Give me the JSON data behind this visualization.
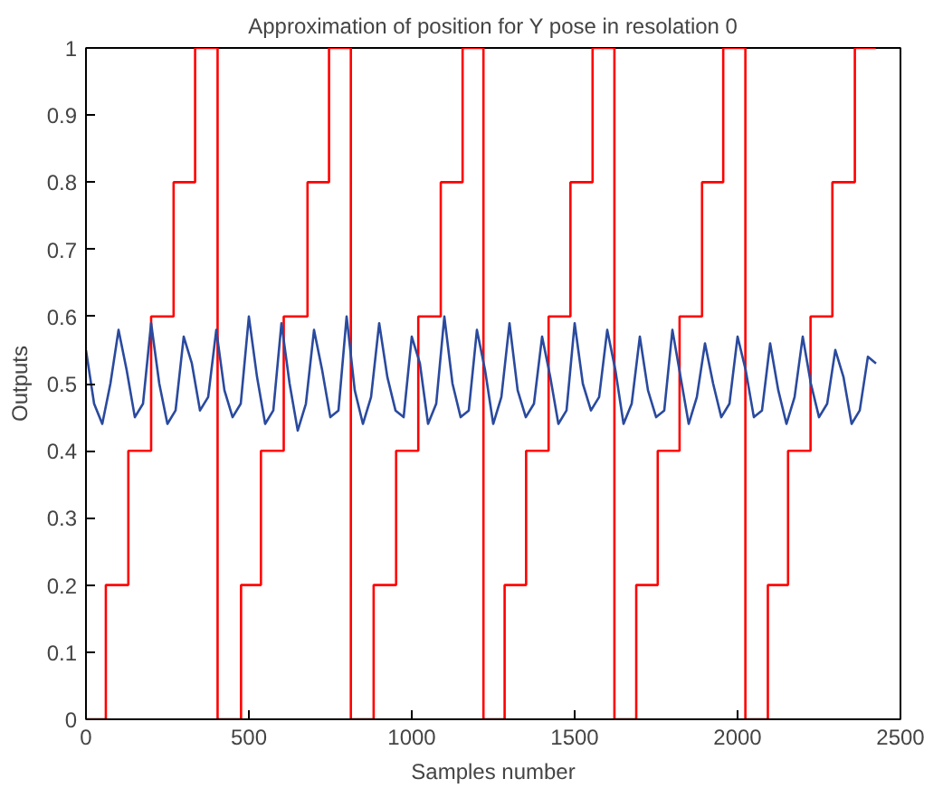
{
  "chart_data": {
    "type": "line",
    "title": "Approximation of position for Y pose in resolation 0",
    "xlabel": "Samples number",
    "ylabel": "Outputs",
    "xlim": [
      0,
      2500
    ],
    "ylim": [
      0,
      1
    ],
    "xticks": [
      0,
      500,
      1000,
      1500,
      2000,
      2500
    ],
    "yticks": [
      0,
      0.1,
      0.2,
      0.3,
      0.4,
      0.5,
      0.6,
      0.7,
      0.8,
      0.9,
      1
    ],
    "grid": false,
    "series": [
      {
        "type": "step",
        "color": "#ff0000",
        "x": [
          0,
          61,
          130,
          200,
          269,
          335,
          404,
          476,
          537,
          607,
          680,
          746,
          813,
          883,
          952,
          1020,
          1089,
          1156,
          1220,
          1285,
          1351,
          1420,
          1487,
          1555,
          1622,
          1689,
          1755,
          1822,
          1891,
          1956,
          2024,
          2093,
          2155,
          2224,
          2291,
          2360,
          2424
        ],
        "values": [
          0,
          0.2,
          0.4,
          0.6,
          0.8,
          1,
          0,
          0.2,
          0.4,
          0.6,
          0.8,
          1,
          0,
          0.2,
          0.4,
          0.6,
          0.8,
          1,
          0,
          0.2,
          0.4,
          0.6,
          0.8,
          1,
          0,
          0.2,
          0.4,
          0.6,
          0.8,
          1,
          0,
          0.2,
          0.4,
          0.6,
          0.8,
          1,
          1
        ]
      },
      {
        "color": "#2a4a9e",
        "x": [
          0,
          25,
          50,
          75,
          100,
          125,
          150,
          175,
          200,
          225,
          250,
          275,
          300,
          325,
          350,
          375,
          400,
          425,
          450,
          475,
          500,
          525,
          550,
          575,
          600,
          625,
          650,
          675,
          700,
          725,
          750,
          775,
          800,
          825,
          850,
          875,
          900,
          925,
          950,
          975,
          1000,
          1025,
          1050,
          1075,
          1100,
          1125,
          1150,
          1175,
          1200,
          1225,
          1250,
          1275,
          1300,
          1325,
          1350,
          1375,
          1400,
          1425,
          1450,
          1475,
          1500,
          1525,
          1550,
          1575,
          1600,
          1625,
          1650,
          1675,
          1700,
          1725,
          1750,
          1775,
          1800,
          1825,
          1850,
          1875,
          1900,
          1925,
          1950,
          1975,
          2000,
          2025,
          2050,
          2075,
          2100,
          2125,
          2150,
          2175,
          2200,
          2225,
          2250,
          2275,
          2300,
          2325,
          2350,
          2375,
          2400,
          2425
        ],
        "values": [
          0.55,
          0.47,
          0.44,
          0.5,
          0.58,
          0.52,
          0.45,
          0.47,
          0.59,
          0.5,
          0.44,
          0.46,
          0.57,
          0.53,
          0.46,
          0.48,
          0.58,
          0.49,
          0.45,
          0.47,
          0.6,
          0.51,
          0.44,
          0.46,
          0.59,
          0.5,
          0.43,
          0.47,
          0.58,
          0.52,
          0.45,
          0.46,
          0.6,
          0.49,
          0.44,
          0.48,
          0.59,
          0.51,
          0.46,
          0.45,
          0.57,
          0.53,
          0.44,
          0.47,
          0.6,
          0.5,
          0.45,
          0.46,
          0.58,
          0.52,
          0.44,
          0.48,
          0.59,
          0.49,
          0.45,
          0.47,
          0.57,
          0.51,
          0.44,
          0.46,
          0.59,
          0.5,
          0.46,
          0.48,
          0.58,
          0.52,
          0.44,
          0.47,
          0.57,
          0.49,
          0.45,
          0.46,
          0.58,
          0.51,
          0.44,
          0.48,
          0.56,
          0.5,
          0.45,
          0.47,
          0.57,
          0.52,
          0.45,
          0.46,
          0.56,
          0.49,
          0.44,
          0.48,
          0.57,
          0.5,
          0.45,
          0.47,
          0.55,
          0.51,
          0.44,
          0.46,
          0.54,
          0.53
        ]
      }
    ]
  }
}
